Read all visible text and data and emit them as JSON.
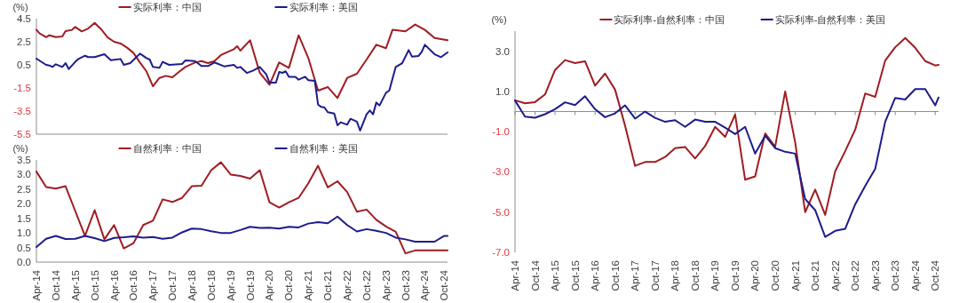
{
  "chart_data": [
    {
      "type": "line",
      "ylabel": "(%)",
      "xlim": [
        "2014-04",
        "2024-11"
      ],
      "ylim": [
        -5.5,
        4.5
      ],
      "yticks": [
        4.5,
        2.5,
        0.5,
        -1.5,
        -3.5,
        -5.5
      ],
      "tick_labels": "y",
      "legend": "top",
      "grid": false,
      "series": [
        {
          "name": "实际利率：中国",
          "color": "#a01c22",
          "x": [
            "2014-04",
            "2014-05",
            "2014-07",
            "2014-08",
            "2014-10",
            "2014-12",
            "2015-01",
            "2015-03",
            "2015-04",
            "2015-06",
            "2015-08",
            "2015-10",
            "2015-12",
            "2016-02",
            "2016-04",
            "2016-06",
            "2016-08",
            "2016-10",
            "2016-12",
            "2017-02",
            "2017-04",
            "2017-06",
            "2017-08",
            "2017-10",
            "2017-12",
            "2018-02",
            "2018-05",
            "2018-07",
            "2018-09",
            "2018-11",
            "2019-01",
            "2019-03",
            "2019-05",
            "2019-06",
            "2019-07",
            "2019-10",
            "2020-01",
            "2020-04",
            "2020-07",
            "2020-10",
            "2021-01",
            "2021-04",
            "2021-07",
            "2021-10",
            "2022-01",
            "2022-04",
            "2022-07",
            "2022-10",
            "2023-01",
            "2023-04",
            "2023-06",
            "2023-10",
            "2024-01",
            "2024-04",
            "2024-07",
            "2024-11"
          ],
          "values": [
            3.53,
            3.22,
            2.9,
            3.06,
            2.9,
            2.96,
            3.42,
            3.53,
            3.78,
            3.4,
            3.65,
            4.14,
            3.58,
            2.88,
            2.5,
            2.35,
            1.99,
            1.53,
            0.7,
            -0.06,
            -1.35,
            -0.63,
            -0.45,
            -0.58,
            -0.12,
            0.32,
            0.7,
            0.83,
            0.65,
            0.83,
            1.35,
            1.6,
            1.86,
            2.12,
            1.73,
            2.63,
            -0.19,
            -1.22,
            0.71,
            0.24,
            3.06,
            1.09,
            -1.73,
            -1.42,
            -2.37,
            -0.63,
            -0.27,
            0.96,
            2.24,
            1.94,
            3.53,
            3.4,
            3.99,
            3.53,
            2.83,
            2.63
          ]
        },
        {
          "name": "实际利率：美国",
          "color": "#1c1c8c",
          "x": [
            "2014-04",
            "2014-07",
            "2014-08",
            "2014-09",
            "2014-10",
            "2014-12",
            "2015-01",
            "2015-02",
            "2015-04",
            "2015-05",
            "2015-07",
            "2015-08",
            "2015-10",
            "2016-01",
            "2016-03",
            "2016-06",
            "2016-07",
            "2016-09",
            "2016-12",
            "2017-02",
            "2017-03",
            "2017-04",
            "2017-06",
            "2017-07",
            "2017-09",
            "2018-01",
            "2018-02",
            "2018-05",
            "2018-07",
            "2018-09",
            "2018-11",
            "2019-02",
            "2019-05",
            "2019-06",
            "2019-07",
            "2019-09",
            "2019-11",
            "2020-01",
            "2020-03",
            "2020-04",
            "2020-06",
            "2020-07",
            "2020-08",
            "2020-09",
            "2020-10",
            "2020-12",
            "2021-01",
            "2021-03",
            "2021-04",
            "2021-06",
            "2021-07",
            "2021-08",
            "2021-09",
            "2021-10",
            "2021-12",
            "2022-01",
            "2022-02",
            "2022-04",
            "2022-05",
            "2022-07",
            "2022-08",
            "2022-10",
            "2022-11",
            "2022-12",
            "2023-01",
            "2023-02",
            "2023-04",
            "2023-05",
            "2023-07",
            "2023-09",
            "2023-11",
            "2023-12",
            "2024-02",
            "2024-03",
            "2024-04",
            "2024-07",
            "2024-09",
            "2024-11"
          ],
          "values": [
            1.04,
            0.5,
            0.45,
            0.32,
            0.55,
            0.32,
            0.65,
            0.14,
            0.76,
            1.01,
            1.29,
            1.17,
            1.17,
            1.42,
            0.91,
            1.01,
            0.5,
            0.65,
            1.47,
            1.09,
            0.96,
            0.32,
            0.24,
            0.76,
            0.5,
            0.58,
            0.88,
            0.83,
            0.4,
            0.4,
            0.71,
            0.37,
            0.5,
            0.24,
            0.32,
            -0.2,
            0.01,
            0.32,
            -0.32,
            -1.04,
            -1.04,
            -0.12,
            -0.19,
            -0.06,
            -0.53,
            -0.53,
            -0.78,
            -0.53,
            -0.83,
            -0.88,
            -2.94,
            -3.14,
            -3.19,
            -3.6,
            -3.71,
            -4.73,
            -4.47,
            -4.68,
            -4.17,
            -4.42,
            -5.19,
            -3.78,
            -3.45,
            -3.78,
            -2.76,
            -3.01,
            -1.91,
            -1.73,
            0.32,
            0.65,
            1.78,
            1.22,
            1.27,
            1.6,
            2.24,
            1.42,
            1.17,
            1.58
          ]
        }
      ]
    },
    {
      "type": "line",
      "ylabel": "(%)",
      "x": [
        "2014-04",
        "2014-07",
        "2014-10",
        "2015-01",
        "2015-04",
        "2015-07",
        "2015-10",
        "2016-01",
        "2016-04",
        "2016-07",
        "2016-10",
        "2017-01",
        "2017-04",
        "2017-07",
        "2017-10",
        "2018-01",
        "2018-04",
        "2018-07",
        "2018-10",
        "2019-01",
        "2019-04",
        "2019-07",
        "2019-10",
        "2020-01",
        "2020-04",
        "2020-07",
        "2020-10",
        "2021-01",
        "2021-04",
        "2021-07",
        "2021-10",
        "2022-01",
        "2022-04",
        "2022-07",
        "2022-10",
        "2023-01",
        "2023-04",
        "2023-07",
        "2023-10",
        "2024-01",
        "2024-04",
        "2024-07",
        "2024-10",
        "2024-11"
      ],
      "xlim": [
        "2014-04",
        "2024-11"
      ],
      "xticks": [
        {
          "value": "2014-04",
          "label": "Apr-14"
        },
        {
          "value": "2014-10",
          "label": "Oct-14"
        },
        {
          "value": "2015-04",
          "label": "Apr-15"
        },
        {
          "value": "2015-10",
          "label": "Oct-15"
        },
        {
          "value": "2016-04",
          "label": "Apr-16"
        },
        {
          "value": "2016-10",
          "label": "Oct-16"
        },
        {
          "value": "2017-04",
          "label": "Apr-17"
        },
        {
          "value": "2017-10",
          "label": "Oct-17"
        },
        {
          "value": "2018-04",
          "label": "Apr-18"
        },
        {
          "value": "2018-10",
          "label": "Oct-18"
        },
        {
          "value": "2019-04",
          "label": "Apr-19"
        },
        {
          "value": "2019-10",
          "label": "Oct-19"
        },
        {
          "value": "2020-04",
          "label": "Apr-20"
        },
        {
          "value": "2020-10",
          "label": "Oct-20"
        },
        {
          "value": "2021-04",
          "label": "Apr-21"
        },
        {
          "value": "2021-10",
          "label": "Oct-21"
        },
        {
          "value": "2022-04",
          "label": "Apr-22"
        },
        {
          "value": "2022-10",
          "label": "Oct-22"
        },
        {
          "value": "2023-04",
          "label": "Apr-23"
        },
        {
          "value": "2023-10",
          "label": "Oct-23"
        },
        {
          "value": "2024-04",
          "label": "Apr-24"
        },
        {
          "value": "2024-10",
          "label": "Oct-24"
        }
      ],
      "ylim": [
        0,
        3.5
      ],
      "yticks": [
        {
          "value": 0,
          "label": "0.0"
        },
        0.5,
        {
          "value": 1,
          "label": "1.0"
        },
        1.5,
        {
          "value": 2,
          "label": "2.0"
        },
        2.5,
        {
          "value": 3,
          "label": "3.0"
        },
        3.5
      ],
      "legend": "top",
      "grid": false,
      "series": [
        {
          "name": "自然利率：中国",
          "color": "#a01c22",
          "values": [
            3.1,
            2.57,
            2.52,
            2.6,
            1.75,
            0.9,
            1.78,
            0.78,
            1.27,
            0.47,
            0.65,
            1.27,
            1.42,
            2.15,
            2.06,
            2.2,
            2.6,
            2.62,
            3.15,
            3.42,
            3.0,
            2.95,
            2.86,
            3.15,
            2.05,
            1.87,
            2.05,
            2.2,
            2.7,
            3.3,
            2.56,
            2.77,
            2.4,
            1.73,
            1.8,
            1.45,
            1.22,
            1.04,
            0.3,
            0.4,
            0.4,
            0.4,
            0.4,
            0.4
          ]
        },
        {
          "name": "自然利率：美国",
          "color": "#1c1c8c",
          "values": [
            0.52,
            0.8,
            0.9,
            0.79,
            0.8,
            0.9,
            0.82,
            0.72,
            0.83,
            0.85,
            0.88,
            0.84,
            0.86,
            0.8,
            0.84,
            1.02,
            1.15,
            1.13,
            1.06,
            1.0,
            1.0,
            1.1,
            1.21,
            1.17,
            1.18,
            1.15,
            1.21,
            1.19,
            1.32,
            1.37,
            1.33,
            1.56,
            1.27,
            1.05,
            1.13,
            1.07,
            1.0,
            0.84,
            0.78,
            0.7,
            0.7,
            0.7,
            0.9,
            0.9
          ]
        }
      ]
    },
    {
      "type": "line",
      "ylabel": "(%)",
      "x": [
        "2014-04",
        "2014-07",
        "2014-10",
        "2015-01",
        "2015-04",
        "2015-07",
        "2015-10",
        "2016-01",
        "2016-04",
        "2016-07",
        "2016-10",
        "2017-01",
        "2017-04",
        "2017-07",
        "2017-10",
        "2018-01",
        "2018-04",
        "2018-07",
        "2018-10",
        "2019-01",
        "2019-04",
        "2019-07",
        "2019-10",
        "2020-01",
        "2020-04",
        "2020-07",
        "2020-10",
        "2021-01",
        "2021-04",
        "2021-07",
        "2021-10",
        "2022-01",
        "2022-04",
        "2022-07",
        "2022-10",
        "2023-01",
        "2023-04",
        "2023-07",
        "2023-10",
        "2024-01",
        "2024-04",
        "2024-07",
        "2024-10",
        "2024-11"
      ],
      "xlim": [
        "2014-04",
        "2024-11"
      ],
      "xticks": [
        {
          "value": "2014-04",
          "label": "Apr-14"
        },
        {
          "value": "2014-10",
          "label": "Oct-14"
        },
        {
          "value": "2015-04",
          "label": "Apr-15"
        },
        {
          "value": "2015-10",
          "label": "Oct-15"
        },
        {
          "value": "2016-04",
          "label": "Apr-16"
        },
        {
          "value": "2016-10",
          "label": "Oct-16"
        },
        {
          "value": "2017-04",
          "label": "Apr-17"
        },
        {
          "value": "2017-10",
          "label": "Oct-17"
        },
        {
          "value": "2018-04",
          "label": "Apr-18"
        },
        {
          "value": "2018-10",
          "label": "Oct-18"
        },
        {
          "value": "2019-04",
          "label": "Apr-19"
        },
        {
          "value": "2019-10",
          "label": "Oct-19"
        },
        {
          "value": "2020-04",
          "label": "Apr-20"
        },
        {
          "value": "2020-10",
          "label": "Oct-20"
        },
        {
          "value": "2021-04",
          "label": "Apr-21"
        },
        {
          "value": "2021-10",
          "label": "Oct-21"
        },
        {
          "value": "2022-04",
          "label": "Apr-22"
        },
        {
          "value": "2022-10",
          "label": "Oct-22"
        },
        {
          "value": "2023-04",
          "label": "Apr-23"
        },
        {
          "value": "2023-10",
          "label": "Oct-23"
        },
        {
          "value": "2024-04",
          "label": "Apr-24"
        },
        {
          "value": "2024-10",
          "label": "Oct-24"
        }
      ],
      "ylim": [
        -7,
        4
      ],
      "yticks": [
        {
          "value": 3,
          "label": "3.0"
        },
        {
          "value": 1,
          "label": "1.0"
        },
        {
          "value": -1,
          "label": "-1.0"
        },
        {
          "value": -3,
          "label": "-3.0"
        },
        {
          "value": -5,
          "label": "-5.0"
        },
        {
          "value": -7,
          "label": "-7.0"
        }
      ],
      "legend": "top",
      "grid": false,
      "series": [
        {
          "name": "实际利率-自然利率：中国",
          "color": "#a01c22",
          "values": [
            0.56,
            0.41,
            0.47,
            0.85,
            2.07,
            2.56,
            2.41,
            2.5,
            1.29,
            1.89,
            1.09,
            -0.7,
            -2.7,
            -2.51,
            -2.51,
            -2.26,
            -1.82,
            -1.76,
            -2.33,
            -1.72,
            -0.76,
            -1.26,
            -0.15,
            -3.39,
            -3.22,
            -1.09,
            -1.75,
            1.0,
            -1.53,
            -5.0,
            -3.88,
            -5.14,
            -2.97,
            -1.97,
            -0.9,
            0.9,
            0.73,
            2.54,
            3.2,
            3.66,
            3.17,
            2.51,
            2.29,
            2.32
          ]
        },
        {
          "name": "实际利率-自然利率：美国",
          "color": "#1c1c8c",
          "values": [
            0.55,
            -0.25,
            -0.31,
            -0.13,
            0.12,
            0.46,
            0.32,
            0.76,
            0.12,
            -0.28,
            -0.09,
            0.31,
            -0.35,
            0.0,
            -0.31,
            -0.51,
            -0.43,
            -0.76,
            -0.4,
            -0.51,
            -0.51,
            -0.8,
            -1.12,
            -0.76,
            -2.09,
            -1.2,
            -1.82,
            -2.0,
            -2.09,
            -4.35,
            -4.9,
            -6.23,
            -5.93,
            -5.83,
            -4.61,
            -3.7,
            -2.85,
            -0.5,
            0.68,
            0.6,
            1.12,
            1.12,
            0.31,
            0.7
          ]
        }
      ]
    }
  ]
}
